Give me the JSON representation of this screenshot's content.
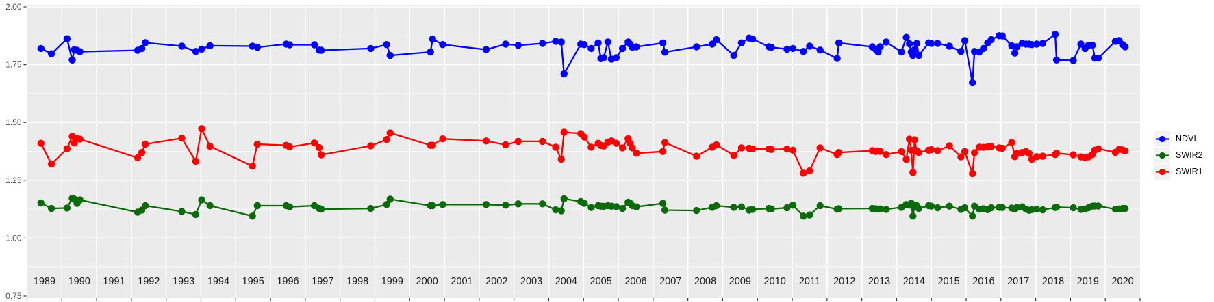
{
  "figure": {
    "background": "#FFFFFF",
    "panel_background": "#EBEBEB",
    "grid_color": "#FFFFFF",
    "axis_text_color": "#4D4D4D",
    "year_label_color": "#1A1A1A",
    "tick_color": "#333333"
  },
  "y_axis": {
    "tick_labels": [
      "2.00",
      "1.75",
      "1.50",
      "1.25",
      "1.00",
      "0.75"
    ],
    "tick_values": [
      2.0,
      1.75,
      1.5,
      1.25,
      1.0,
      0.75
    ]
  },
  "x_axis": {
    "year_labels": [
      "1989",
      "1990",
      "1991",
      "1992",
      "1993",
      "1994",
      "1995",
      "1996",
      "1997",
      "1998",
      "1999",
      "2000",
      "2001",
      "2002",
      "2003",
      "2004",
      "2005",
      "2006",
      "2007",
      "2008",
      "2009",
      "2010",
      "2011",
      "2012",
      "2013",
      "2014",
      "2015",
      "2016",
      "2017",
      "2018",
      "2019",
      "2020"
    ]
  },
  "legend": {
    "key_background": "#F2F2F2",
    "items": [
      {
        "label": "NDVI",
        "color": "#0000FF"
      },
      {
        "label": "SWIR2",
        "color": "#0B6B0B"
      },
      {
        "label": "SWIR1",
        "color": "#FF0000"
      }
    ]
  },
  "chart_data": {
    "type": "line",
    "title": "",
    "xlabel": "",
    "ylabel": "",
    "ylim": [
      0.75,
      2.0
    ],
    "xlim": [
      1989,
      2021
    ],
    "grid": true,
    "legend_position": "right",
    "x": [
      1989.4,
      1989.7,
      1990.15,
      1990.3,
      1990.36,
      1990.44,
      1990.52,
      1992.18,
      1992.3,
      1992.4,
      1993.45,
      1993.85,
      1994.02,
      1994.26,
      1995.48,
      1995.62,
      1996.45,
      1996.55,
      1997.26,
      1997.4,
      1997.46,
      1998.88,
      1999.34,
      1999.44,
      2000.6,
      2000.66,
      2000.95,
      2002.2,
      2002.76,
      2003.12,
      2003.82,
      2004.2,
      2004.36,
      2004.44,
      2004.92,
      2005.02,
      2005.22,
      2005.42,
      2005.5,
      2005.58,
      2005.7,
      2005.8,
      2005.94,
      2006.12,
      2006.28,
      2006.34,
      2006.4,
      2006.52,
      2007.28,
      2007.34,
      2008.25,
      2008.7,
      2008.82,
      2009.32,
      2009.54,
      2009.76,
      2009.86,
      2010.33,
      2010.4,
      2010.85,
      2011.02,
      2011.32,
      2011.5,
      2011.8,
      2012.29,
      2012.34,
      2013.3,
      2013.4,
      2013.47,
      2013.53,
      2013.7,
      2014.14,
      2014.28,
      2014.37,
      2014.42,
      2014.47,
      2014.52,
      2014.58,
      2014.64,
      2014.92,
      2015.0,
      2015.18,
      2015.52,
      2015.85,
      2015.96,
      2016.18,
      2016.24,
      2016.38,
      2016.5,
      2016.62,
      2016.72,
      2016.95,
      2017.04,
      2017.31,
      2017.4,
      2017.46,
      2017.61,
      2017.72,
      2017.81,
      2017.89,
      2018.03,
      2018.2,
      2018.56,
      2018.6,
      2019.08,
      2019.3,
      2019.42,
      2019.52,
      2019.63,
      2019.7,
      2019.8,
      2020.29,
      2020.4,
      2020.5,
      2020.57
    ],
    "series": [
      {
        "name": "NDVI",
        "color": "#0000FF",
        "values": [
          1.82,
          1.797,
          1.862,
          1.77,
          1.815,
          1.812,
          1.806,
          1.812,
          1.82,
          1.845,
          1.83,
          1.807,
          1.817,
          1.832,
          1.83,
          1.825,
          1.839,
          1.836,
          1.836,
          1.813,
          1.812,
          1.82,
          1.837,
          1.79,
          1.805,
          1.861,
          1.837,
          1.815,
          1.839,
          1.834,
          1.842,
          1.851,
          1.848,
          1.71,
          1.839,
          1.837,
          1.82,
          1.844,
          1.776,
          1.78,
          1.848,
          1.774,
          1.78,
          1.82,
          1.848,
          1.839,
          1.825,
          1.827,
          1.844,
          1.804,
          1.827,
          1.839,
          1.858,
          1.79,
          1.844,
          1.865,
          1.861,
          1.827,
          1.825,
          1.817,
          1.82,
          1.807,
          1.83,
          1.813,
          1.777,
          1.844,
          1.827,
          1.817,
          1.805,
          1.827,
          1.848,
          1.805,
          1.868,
          1.84,
          1.805,
          1.79,
          1.815,
          1.842,
          1.79,
          1.844,
          1.842,
          1.842,
          1.83,
          1.807,
          1.854,
          1.672,
          1.807,
          1.805,
          1.82,
          1.844,
          1.858,
          1.875,
          1.874,
          1.832,
          1.8,
          1.827,
          1.842,
          1.839,
          1.839,
          1.837,
          1.839,
          1.842,
          1.881,
          1.77,
          1.768,
          1.839,
          1.82,
          1.834,
          1.834,
          1.778,
          1.778,
          1.851,
          1.854,
          1.837,
          1.827
        ]
      },
      {
        "name": "SWIR2",
        "color": "#0B6B0B",
        "values": [
          1.152,
          1.128,
          1.13,
          1.172,
          1.168,
          1.15,
          1.165,
          1.112,
          1.121,
          1.14,
          1.115,
          1.102,
          1.165,
          1.14,
          1.095,
          1.14,
          1.14,
          1.135,
          1.14,
          1.128,
          1.125,
          1.128,
          1.145,
          1.168,
          1.14,
          1.14,
          1.145,
          1.145,
          1.142,
          1.148,
          1.148,
          1.122,
          1.118,
          1.17,
          1.158,
          1.15,
          1.132,
          1.14,
          1.138,
          1.137,
          1.14,
          1.138,
          1.136,
          1.128,
          1.155,
          1.15,
          1.14,
          1.135,
          1.15,
          1.121,
          1.119,
          1.133,
          1.14,
          1.133,
          1.135,
          1.121,
          1.124,
          1.128,
          1.126,
          1.131,
          1.142,
          1.095,
          1.1,
          1.14,
          1.125,
          1.127,
          1.128,
          1.127,
          1.125,
          1.126,
          1.124,
          1.133,
          1.145,
          1.142,
          1.15,
          1.095,
          1.143,
          1.14,
          1.128,
          1.14,
          1.138,
          1.131,
          1.138,
          1.124,
          1.131,
          1.095,
          1.138,
          1.125,
          1.127,
          1.123,
          1.131,
          1.133,
          1.132,
          1.13,
          1.125,
          1.132,
          1.135,
          1.125,
          1.12,
          1.123,
          1.125,
          1.122,
          1.132,
          1.134,
          1.131,
          1.124,
          1.126,
          1.131,
          1.138,
          1.139,
          1.139,
          1.125,
          1.126,
          1.128,
          1.128
        ]
      },
      {
        "name": "SWIR1",
        "color": "#FF0000",
        "values": [
          1.41,
          1.32,
          1.386,
          1.44,
          1.411,
          1.43,
          1.428,
          1.347,
          1.37,
          1.406,
          1.432,
          1.332,
          1.473,
          1.397,
          1.311,
          1.406,
          1.401,
          1.394,
          1.411,
          1.391,
          1.36,
          1.399,
          1.426,
          1.455,
          1.401,
          1.401,
          1.429,
          1.42,
          1.403,
          1.418,
          1.418,
          1.393,
          1.341,
          1.458,
          1.452,
          1.437,
          1.393,
          1.41,
          1.4,
          1.398,
          1.415,
          1.42,
          1.41,
          1.39,
          1.43,
          1.41,
          1.39,
          1.367,
          1.374,
          1.413,
          1.354,
          1.393,
          1.403,
          1.358,
          1.39,
          1.388,
          1.386,
          1.385,
          1.383,
          1.385,
          1.38,
          1.281,
          1.291,
          1.39,
          1.361,
          1.37,
          1.378,
          1.374,
          1.377,
          1.375,
          1.361,
          1.374,
          1.34,
          1.428,
          1.38,
          1.284,
          1.425,
          1.377,
          1.37,
          1.38,
          1.382,
          1.378,
          1.399,
          1.351,
          1.374,
          1.279,
          1.369,
          1.393,
          1.392,
          1.394,
          1.396,
          1.39,
          1.388,
          1.413,
          1.352,
          1.366,
          1.37,
          1.374,
          1.366,
          1.341,
          1.352,
          1.354,
          1.361,
          1.367,
          1.36,
          1.351,
          1.347,
          1.351,
          1.361,
          1.38,
          1.386,
          1.371,
          1.384,
          1.381,
          1.377
        ]
      }
    ]
  }
}
